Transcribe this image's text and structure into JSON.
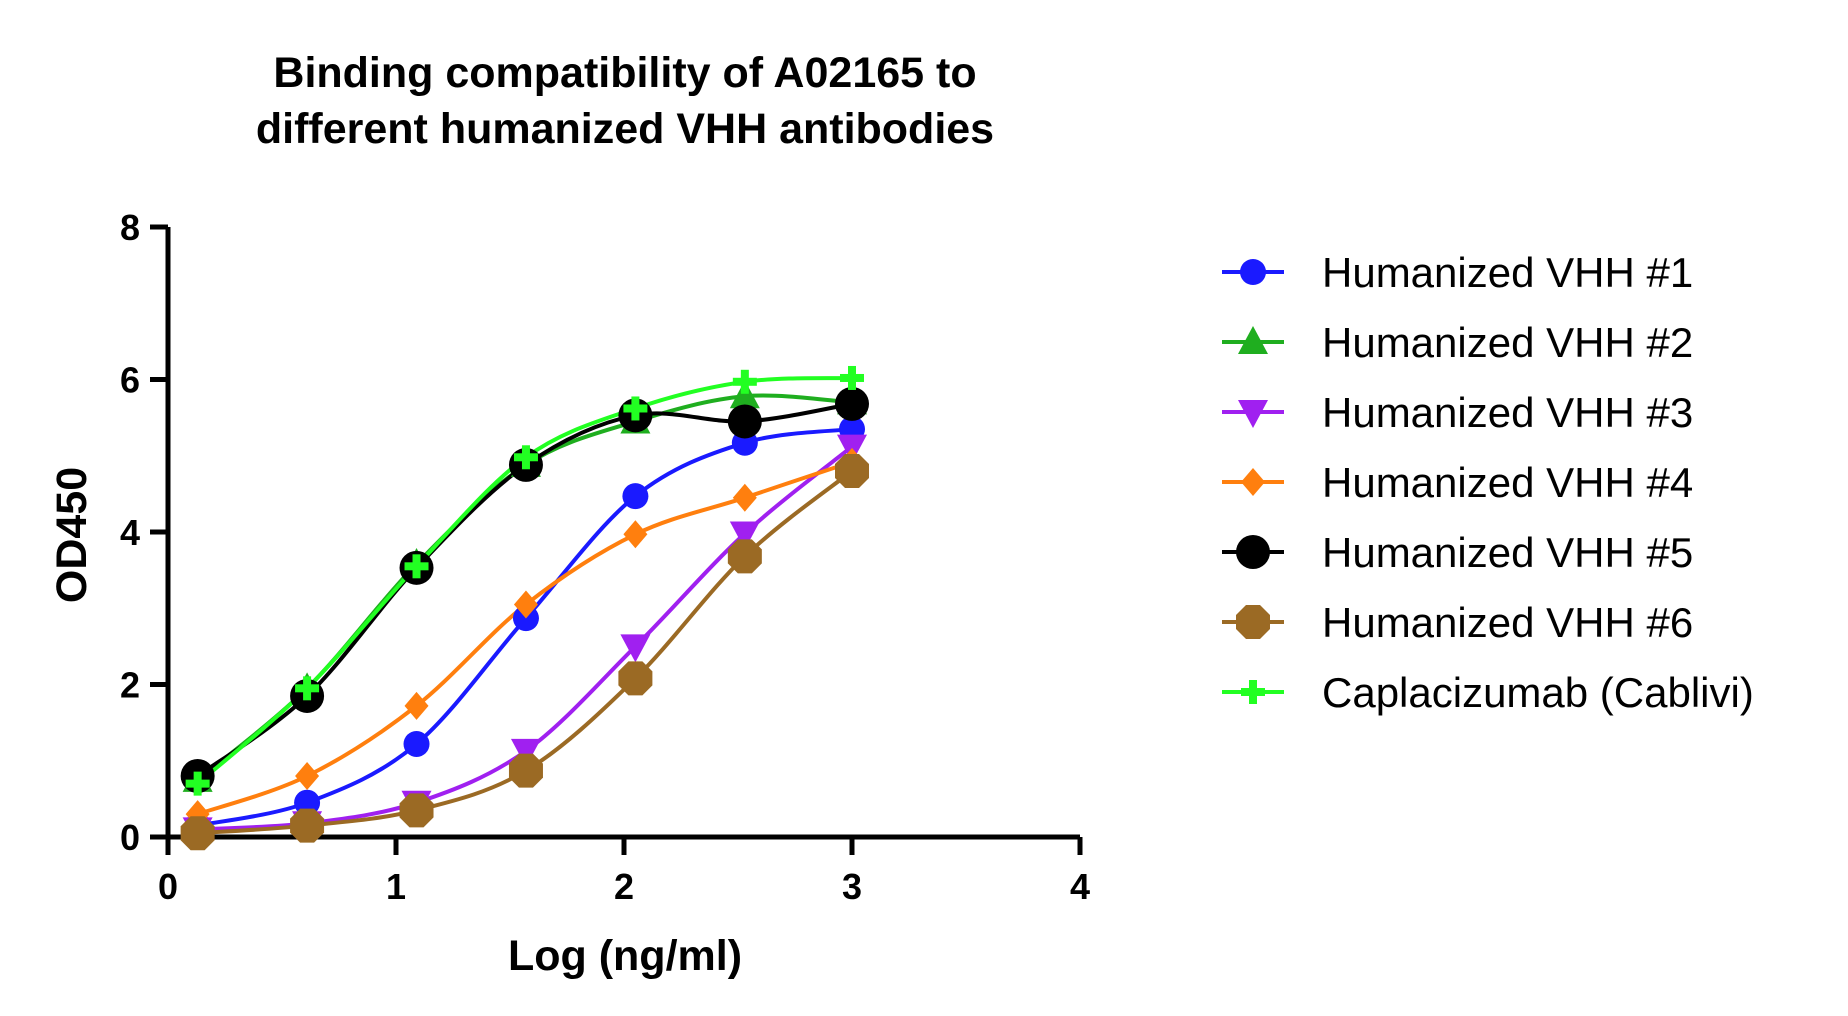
{
  "chart_data": {
    "type": "line",
    "title_lines": [
      "Binding compatibility of A02165 to",
      "different humanized VHH antibodies"
    ],
    "xlabel": "Log (ng/ml)",
    "ylabel": "OD450",
    "xlim": [
      0,
      4
    ],
    "ylim": [
      0,
      8
    ],
    "xticks": [
      0,
      1,
      2,
      3,
      4
    ],
    "yticks": [
      0,
      2,
      4,
      6,
      8
    ],
    "grid": false,
    "legend_position": "right",
    "x": [
      0.13,
      0.61,
      1.09,
      1.57,
      2.05,
      2.53,
      3.0
    ],
    "series": [
      {
        "name": "Humanized VHH #1",
        "marker": "circle",
        "color": "#1a1aff",
        "values": [
          0.15,
          0.45,
          1.22,
          2.87,
          4.47,
          5.17,
          5.35
        ]
      },
      {
        "name": "Humanized VHH #2",
        "marker": "triangle-up",
        "color": "#1fae1f",
        "values": [
          0.75,
          1.95,
          3.58,
          4.88,
          5.45,
          5.78,
          5.7
        ]
      },
      {
        "name": "Humanized VHH #3",
        "marker": "triangle-down",
        "color": "#a020f0",
        "values": [
          0.1,
          0.18,
          0.45,
          1.13,
          2.5,
          3.98,
          5.12
        ]
      },
      {
        "name": "Humanized VHH #4",
        "marker": "diamond",
        "color": "#ff7f0e",
        "values": [
          0.3,
          0.8,
          1.72,
          3.05,
          3.97,
          4.45,
          4.92
        ]
      },
      {
        "name": "Humanized VHH #5",
        "marker": "circle",
        "color": "#000000",
        "values": [
          0.8,
          1.85,
          3.53,
          4.88,
          5.53,
          5.45,
          5.68
        ]
      },
      {
        "name": "Humanized VHH #6",
        "marker": "octagon",
        "color": "#9b6a24",
        "values": [
          0.05,
          0.15,
          0.35,
          0.87,
          2.08,
          3.68,
          4.8
        ]
      },
      {
        "name": "Caplacizumab (Cablivi)",
        "marker": "plus",
        "color": "#22ff22",
        "values": [
          0.7,
          1.95,
          3.55,
          4.98,
          5.62,
          5.97,
          6.02
        ]
      }
    ]
  }
}
